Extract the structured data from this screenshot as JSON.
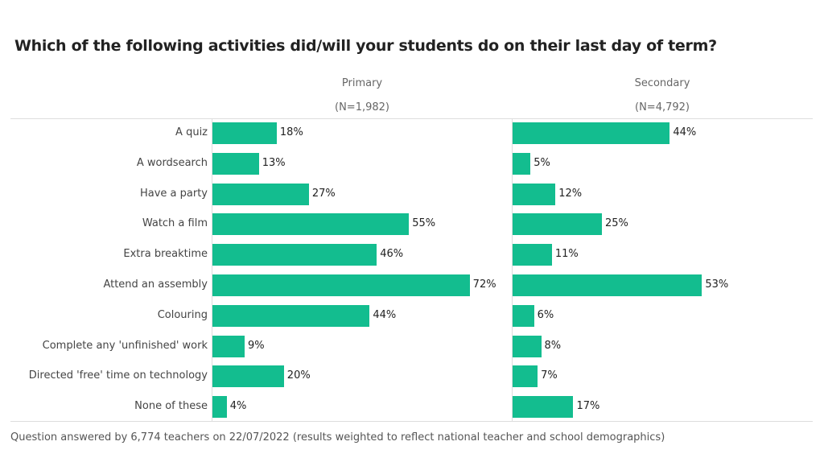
{
  "chart_data": {
    "type": "bar",
    "orientation": "horizontal",
    "title": "Which of the following activities did/will your students do on their last day of term?",
    "categories": [
      "A quiz",
      "A wordsearch",
      "Have a party",
      "Watch a film",
      "Extra breaktime",
      "Attend an assembly",
      "Colouring",
      "Complete any 'unfinished' work",
      "Directed 'free' time on technology",
      "None of these"
    ],
    "series": [
      {
        "name": "Primary",
        "subtitle": "(N=1,982)",
        "values": [
          18,
          13,
          27,
          55,
          46,
          72,
          44,
          9,
          20,
          4
        ],
        "labels": [
          "18%",
          "13%",
          "27%",
          "55%",
          "46%",
          "72%",
          "44%",
          "9%",
          "20%",
          "4%"
        ]
      },
      {
        "name": "Secondary",
        "subtitle": "(N=4,792)",
        "values": [
          44,
          5,
          12,
          25,
          11,
          53,
          6,
          8,
          7,
          17
        ],
        "labels": [
          "44%",
          "5%",
          "12%",
          "25%",
          "11%",
          "53%",
          "6%",
          "8%",
          "7%",
          "17%"
        ]
      }
    ],
    "color": "#13bd8f",
    "unit": "%",
    "footnote": "Question answered by 6,774 teachers on 22/07/2022 (results weighted to reflect national teacher and school demographics)"
  }
}
